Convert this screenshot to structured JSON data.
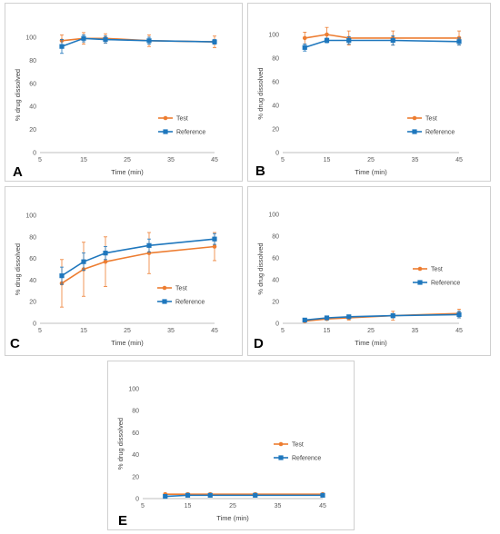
{
  "colors": {
    "test": "#ED7D31",
    "reference": "#1F77BD",
    "axis": "#bfbfbf",
    "text": "#595959"
  },
  "chart_data": [
    {
      "type": "line",
      "panel_label": "A",
      "xlabel": "Time (min)",
      "ylabel": "% drug dissolved",
      "xlim": [
        5,
        45
      ],
      "ylim": [
        0,
        100
      ],
      "xticks": [
        5,
        15,
        25,
        35,
        45
      ],
      "yticks": [
        0,
        20,
        40,
        60,
        80,
        100
      ],
      "legend": "right-middle",
      "series": [
        {
          "name": "Test",
          "marker": "circle",
          "x": [
            10,
            15,
            20,
            30,
            45
          ],
          "y": [
            97,
            99,
            99,
            97,
            96
          ],
          "err": [
            5,
            5,
            4,
            5,
            5
          ]
        },
        {
          "name": "Reference",
          "marker": "square",
          "x": [
            10,
            15,
            20,
            30,
            45
          ],
          "y": [
            92,
            99,
            98,
            97,
            96
          ],
          "err": [
            6,
            3,
            3,
            3,
            2
          ]
        }
      ]
    },
    {
      "type": "line",
      "panel_label": "B",
      "xlabel": "Time (min)",
      "ylabel": "% drug dissolved",
      "xlim": [
        5,
        45
      ],
      "ylim": [
        0,
        100
      ],
      "xticks": [
        5,
        15,
        25,
        35,
        45
      ],
      "yticks": [
        0,
        20,
        40,
        60,
        80,
        100
      ],
      "legend": "right-middle",
      "series": [
        {
          "name": "Test",
          "marker": "circle",
          "x": [
            10,
            15,
            20,
            30,
            45
          ],
          "y": [
            97,
            100,
            97,
            97,
            97
          ],
          "err": [
            5,
            6,
            6,
            6,
            6
          ]
        },
        {
          "name": "Reference",
          "marker": "square",
          "x": [
            10,
            15,
            20,
            30,
            45
          ],
          "y": [
            89,
            95,
            95,
            95,
            94
          ],
          "err": [
            3,
            2,
            3,
            4,
            3
          ]
        }
      ]
    },
    {
      "type": "line",
      "panel_label": "C",
      "xlabel": "Time (min)",
      "ylabel": "% drug dissolved",
      "xlim": [
        5,
        45
      ],
      "ylim": [
        0,
        100
      ],
      "xticks": [
        5,
        15,
        25,
        35,
        45
      ],
      "yticks": [
        0,
        20,
        40,
        60,
        80,
        100
      ],
      "legend": "right-lower",
      "series": [
        {
          "name": "Test",
          "marker": "circle",
          "x": [
            10,
            15,
            20,
            30,
            45
          ],
          "y": [
            37,
            50,
            57,
            65,
            71
          ],
          "err": [
            22,
            25,
            23,
            19,
            13
          ]
        },
        {
          "name": "Reference",
          "marker": "square",
          "x": [
            10,
            15,
            20,
            30,
            45
          ],
          "y": [
            44,
            57,
            65,
            72,
            78
          ],
          "err": [
            8,
            8,
            6,
            6,
            5
          ]
        }
      ]
    },
    {
      "type": "line",
      "panel_label": "D",
      "xlabel": "Time (min)",
      "ylabel": "% drug dissolved",
      "xlim": [
        5,
        45
      ],
      "ylim": [
        0,
        100
      ],
      "xticks": [
        5,
        15,
        25,
        35,
        45
      ],
      "yticks": [
        0,
        20,
        40,
        60,
        80,
        100
      ],
      "legend": "right-middle",
      "series": [
        {
          "name": "Test",
          "marker": "circle",
          "x": [
            10,
            15,
            20,
            30,
            45
          ],
          "y": [
            2,
            4,
            5,
            7,
            9
          ],
          "err": [
            1,
            1,
            2,
            4,
            4
          ]
        },
        {
          "name": "Reference",
          "marker": "square",
          "x": [
            10,
            15,
            20,
            30,
            45
          ],
          "y": [
            3,
            5,
            6,
            7,
            8
          ],
          "err": [
            1,
            1,
            1,
            2,
            3
          ]
        }
      ]
    },
    {
      "type": "line",
      "panel_label": "E",
      "xlabel": "Time (min)",
      "ylabel": "% drug dissolved",
      "xlim": [
        5,
        45
      ],
      "ylim": [
        0,
        100
      ],
      "xticks": [
        5,
        15,
        25,
        35,
        45
      ],
      "yticks": [
        0,
        20,
        40,
        60,
        80,
        100
      ],
      "legend": "right-middle",
      "series": [
        {
          "name": "Test",
          "marker": "circle",
          "x": [
            10,
            15,
            20,
            30,
            45
          ],
          "y": [
            4,
            4,
            4,
            4,
            4
          ],
          "err": [
            1,
            1,
            1,
            1,
            1
          ]
        },
        {
          "name": "Reference",
          "marker": "square",
          "x": [
            10,
            15,
            20,
            30,
            45
          ],
          "y": [
            2,
            3,
            3,
            3,
            3
          ],
          "err": [
            1,
            1,
            1,
            1,
            1
          ]
        }
      ]
    }
  ]
}
